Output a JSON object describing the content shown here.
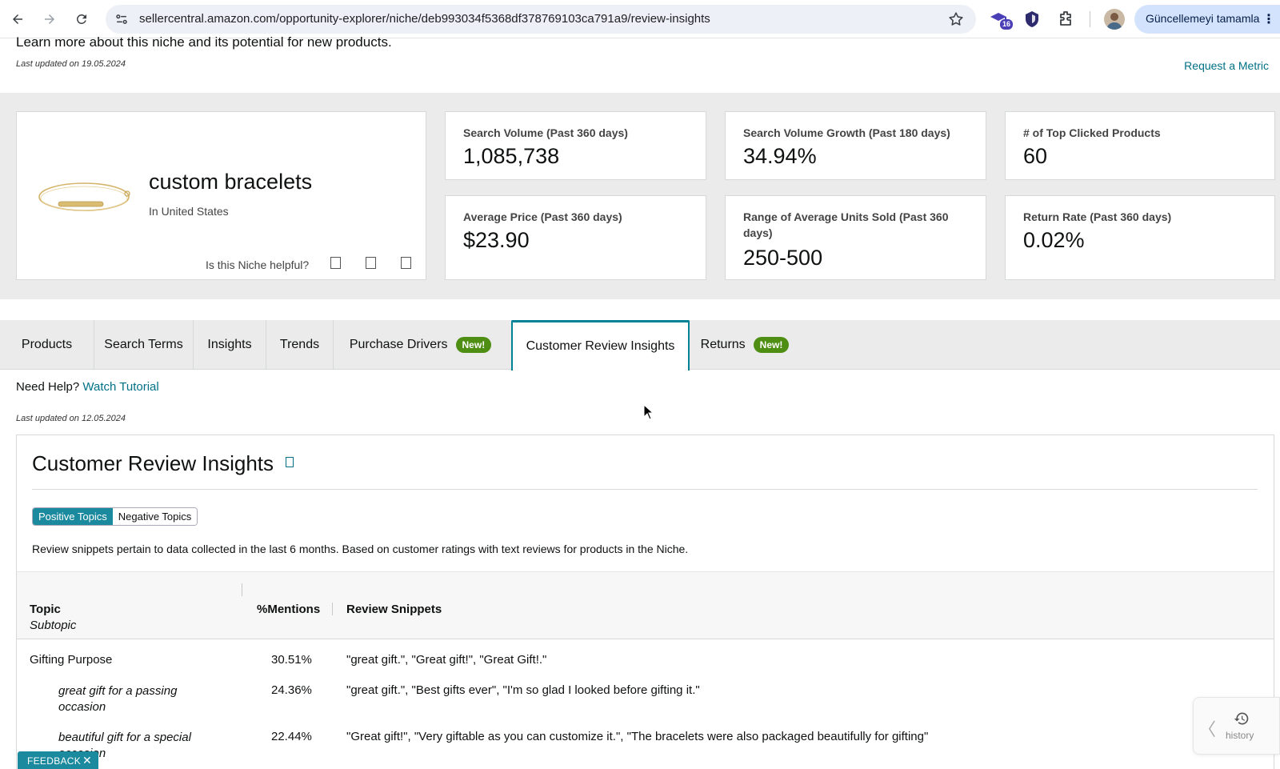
{
  "browser": {
    "url": "sellercentral.amazon.com/opportunity-explorer/niche/deb993034f5368df378769103ca791a9/review-insights",
    "extension_badge": "16",
    "update_button": "Güncellemeyi tamamla"
  },
  "header": {
    "intro": "Learn more about this niche and its potential for new products.",
    "last_updated": "Last updated on 19.05.2024",
    "request_metric": "Request a Metric"
  },
  "niche": {
    "title": "custom bracelets",
    "country": "In United States",
    "helpful_prompt": "Is this Niche helpful?"
  },
  "metrics": [
    {
      "label": "Search Volume (Past 360 days)",
      "value": "1,085,738"
    },
    {
      "label": "Search Volume Growth (Past 180 days)",
      "value": "34.94%"
    },
    {
      "label": "# of Top Clicked Products",
      "value": "60"
    },
    {
      "label": "Average Price (Past 360 days)",
      "value": "$23.90"
    },
    {
      "label": "Range of Average Units Sold (Past 360 days)",
      "value": "250-500"
    },
    {
      "label": "Return Rate (Past 360 days)",
      "value": "0.02%"
    }
  ],
  "tabs": [
    {
      "label": "Products"
    },
    {
      "label": "Search Terms"
    },
    {
      "label": "Insights"
    },
    {
      "label": "Trends"
    },
    {
      "label": "Purchase Drivers",
      "badge": "New!"
    },
    {
      "label": "Customer Review Insights",
      "active": true
    },
    {
      "label": "Returns",
      "badge": "New!"
    }
  ],
  "help": {
    "prefix": "Need Help?",
    "link": "Watch Tutorial",
    "last_updated": "Last updated on 12.05.2024"
  },
  "review_insights": {
    "title": "Customer Review Insights",
    "toggle": {
      "positive": "Positive Topics",
      "negative": "Negative Topics",
      "selected": "Positive Topics"
    },
    "note": "Review snippets pertain to data collected in the last 6 months. Based on customer ratings with text reviews for products in the Niche.",
    "columns": {
      "topic": "Topic",
      "subtopic": "Subtopic",
      "mentions": "%Mentions",
      "snippets": "Review Snippets"
    },
    "rows": [
      {
        "topic": "Gifting Purpose",
        "mentions": "30.51%",
        "snippets": "\"great gift.\", \"Great gift!\", \"Great Gift!.\""
      },
      {
        "subtopic": "great gift for a passing occasion",
        "mentions": "24.36%",
        "snippets": "\"great gift.\", \"Best gifts ever\", \"I'm so glad I looked before gifting it.\""
      },
      {
        "subtopic": "beautiful gift for a special occasion",
        "mentions": "22.44%",
        "snippets": "\"Great gift!\", \"Very giftable as you can customize it.\", \"The bracelets were also packaged beautifully for gifting\""
      }
    ]
  },
  "widgets": {
    "feedback": "FEEDBACK",
    "history": "history"
  }
}
